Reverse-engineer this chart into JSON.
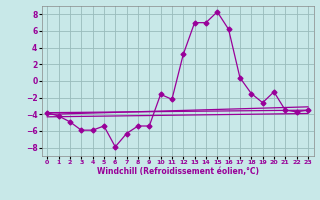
{
  "title": "",
  "xlabel": "Windchill (Refroidissement éolien,°C)",
  "ylabel": "",
  "background_color": "#c8e8e8",
  "grid_color": "#99bbbb",
  "line_color": "#990099",
  "xlim": [
    -0.5,
    23.5
  ],
  "ylim": [
    -9,
    9
  ],
  "yticks": [
    -8,
    -6,
    -4,
    -2,
    0,
    2,
    4,
    6,
    8
  ],
  "xticks": [
    0,
    1,
    2,
    3,
    4,
    5,
    6,
    7,
    8,
    9,
    10,
    11,
    12,
    13,
    14,
    15,
    16,
    17,
    18,
    19,
    20,
    21,
    22,
    23
  ],
  "series1_x": [
    0,
    1,
    2,
    3,
    4,
    5,
    6,
    7,
    8,
    9,
    10,
    11,
    12,
    13,
    14,
    15,
    16,
    17,
    18,
    19,
    20,
    21,
    22,
    23
  ],
  "series1_y": [
    -3.8,
    -4.2,
    -4.9,
    -5.9,
    -5.9,
    -5.4,
    -7.9,
    -6.3,
    -5.4,
    -5.4,
    -1.6,
    -2.2,
    3.2,
    7.0,
    7.0,
    8.3,
    6.2,
    0.4,
    -1.5,
    -2.6,
    -1.3,
    -3.5,
    -3.7,
    -3.5
  ],
  "series2_x": [
    0,
    23
  ],
  "series2_y": [
    -3.8,
    -3.5
  ],
  "series3_x": [
    0,
    23
  ],
  "series3_y": [
    -4.3,
    -3.9
  ],
  "series4_x": [
    0,
    23
  ],
  "series4_y": [
    -4.0,
    -3.1
  ]
}
